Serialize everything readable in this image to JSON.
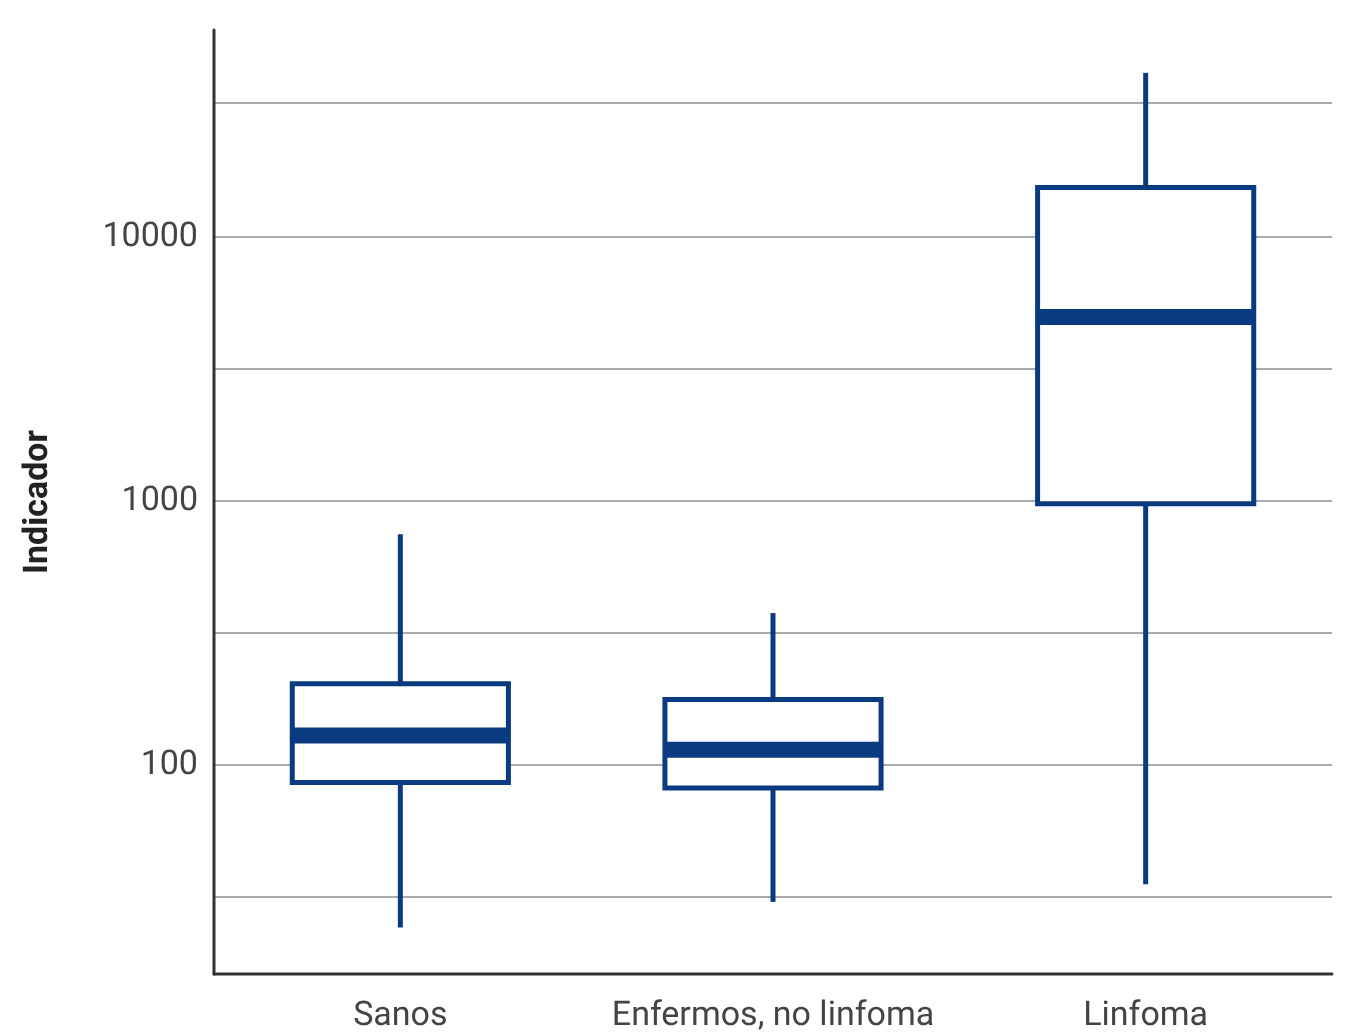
{
  "chart_data": {
    "type": "box",
    "ylabel": "Indicador",
    "categories": [
      "Sanos",
      "Enfermos, no linfoma",
      "Linfoma"
    ],
    "boxes": [
      {
        "low": 24,
        "q1": 85,
        "median": 128,
        "q3": 201,
        "high": 740
      },
      {
        "low": 30,
        "q1": 81,
        "median": 113,
        "q3": 175,
        "high": 372
      },
      {
        "low": 35,
        "q1": 966,
        "median": 4920,
        "q3": 15200,
        "high": 41300
      }
    ],
    "color": "#0a3a80",
    "log": "y",
    "ylim": [
      16,
      60000
    ],
    "yticks": [
      {
        "value": 31.62,
        "label": null
      },
      100,
      {
        "value": 316.2,
        "label": null
      },
      1000,
      {
        "value": 3162,
        "label": null
      },
      10000,
      {
        "value": 31623,
        "label": null
      }
    ],
    "grid": "y"
  }
}
